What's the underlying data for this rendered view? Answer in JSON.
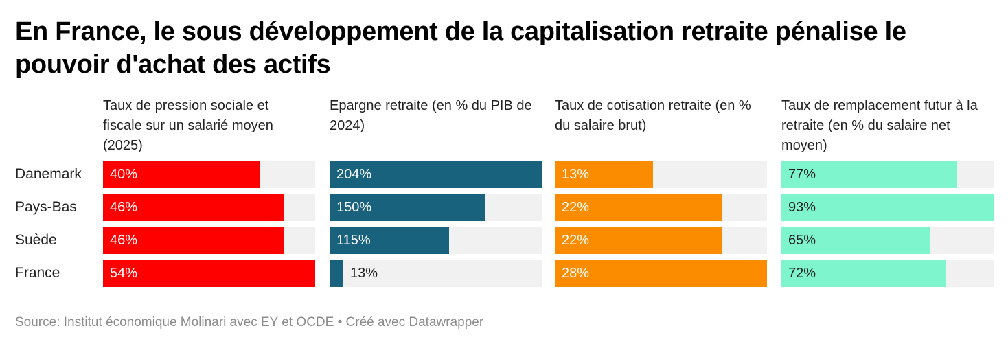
{
  "title": "En France, le sous développement de la capitalisation retraite pénalise le pouvoir d'achat des actifs",
  "source": "Source: Institut économique Molinari avec EY et OCDE • Créé avec Datawrapper",
  "chart_data": {
    "type": "bar",
    "orientation": "horizontal",
    "categories": [
      "Danemark",
      "Pays-Bas",
      "Suède",
      "France"
    ],
    "panels": [
      {
        "header": "Taux de pression sociale et fiscale sur un salarié moyen (2025)",
        "color": "#ff0000",
        "label_color": "#ffffff",
        "max": 54,
        "values": [
          40,
          46,
          46,
          54
        ],
        "labels": [
          "40%",
          "46%",
          "46%",
          "54%"
        ]
      },
      {
        "header": "Epargne retraite (en % du PIB de 2024)",
        "color": "#18627e",
        "label_color": "#ffffff",
        "max": 204,
        "values": [
          204,
          150,
          115,
          13
        ],
        "labels": [
          "204%",
          "150%",
          "115%",
          "13%"
        ]
      },
      {
        "header": "Taux de cotisation retraite (en % du salaire brut)",
        "color": "#fb8c00",
        "label_color": "#ffffff",
        "max": 28,
        "values": [
          13,
          22,
          22,
          28
        ],
        "labels": [
          "13%",
          "22%",
          "22%",
          "28%"
        ]
      },
      {
        "header": "Taux de remplacement futur à la retraite (en % du salaire net moyen)",
        "color": "#7ef5cc",
        "label_color": "#1d1d1d",
        "max": 93,
        "values": [
          77,
          93,
          65,
          72
        ],
        "labels": [
          "77%",
          "93%",
          "65%",
          "72%"
        ]
      }
    ]
  }
}
